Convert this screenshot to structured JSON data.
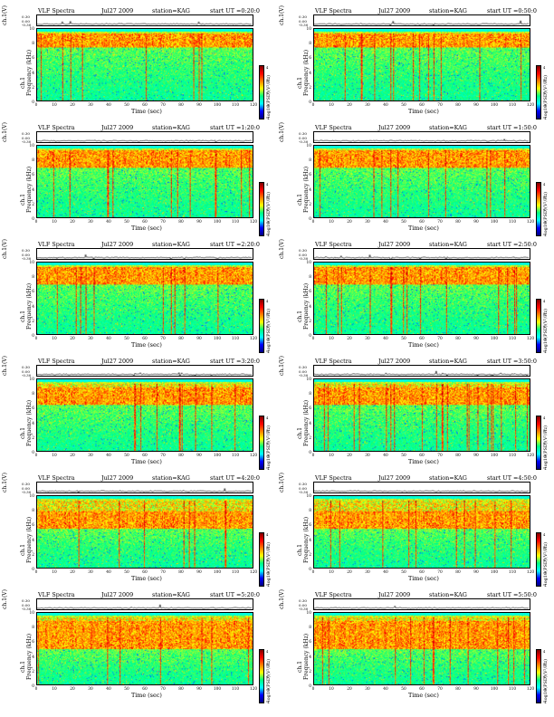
{
  "figure": {
    "title": "VLF Spectra",
    "date": "Jul27 2009",
    "station_label": "station=KAG",
    "ut_prefix": "start  UT =",
    "waveform_label": "ch.1(V)",
    "waveform_ticks": [
      "0.30",
      "0.00",
      "-0.30"
    ],
    "freq_label_top": "ch.1",
    "freq_label": "Frequency  (kHz)",
    "x_label": "Time  (sec)",
    "colorbar_label": "log10(PSD)(V²/Hz)",
    "colorbar_ticks": [
      "4",
      "2",
      "0",
      "-2",
      "-4"
    ],
    "colormap": [
      "#000080",
      "#0000ff",
      "#00ffff",
      "#00ff7f",
      "#ffff00",
      "#ff8000",
      "#ff0000",
      "#800000"
    ]
  },
  "chart_data": [
    {
      "type": "heatmap",
      "title": "VLF Spectra",
      "start_ut": "0:20:0",
      "xlabel": "Time  (sec)",
      "ylabel": "Frequency  (kHz)",
      "xlim": [
        0,
        120
      ],
      "ylim": [
        0,
        10
      ],
      "xticks": [
        0,
        10,
        20,
        30,
        40,
        50,
        60,
        70,
        80,
        90,
        100,
        110,
        120
      ],
      "yticks": [
        0,
        2,
        4,
        6,
        8,
        10
      ],
      "colorbar": "log10(PSD)(V²/Hz)",
      "band_top_khz": 9.5,
      "dense_band_khz": [
        7.5,
        9.5
      ]
    },
    {
      "type": "heatmap",
      "title": "VLF Spectra",
      "start_ut": "0:50:0",
      "xlabel": "Time  (sec)",
      "ylabel": "Frequency  (kHz)",
      "xlim": [
        0,
        120
      ],
      "ylim": [
        0,
        10
      ],
      "xticks": [
        0,
        10,
        20,
        30,
        40,
        50,
        60,
        70,
        80,
        90,
        100,
        110,
        120
      ],
      "yticks": [
        0,
        2,
        4,
        6,
        8,
        10
      ],
      "colorbar": "log10(PSD)(V²/Hz)",
      "band_top_khz": 9.5,
      "dense_band_khz": [
        7.5,
        9.5
      ]
    },
    {
      "type": "heatmap",
      "title": "VLF Spectra",
      "start_ut": "1:20:0",
      "xlabel": "Time  (sec)",
      "ylabel": "Frequency  (kHz)",
      "xlim": [
        0,
        120
      ],
      "ylim": [
        0,
        10
      ],
      "xticks": [
        0,
        10,
        20,
        30,
        40,
        50,
        60,
        70,
        80,
        90,
        100,
        110,
        120
      ],
      "yticks": [
        0,
        2,
        4,
        6,
        8,
        10
      ],
      "colorbar": "log10(PSD)(V²/Hz)",
      "band_top_khz": 9.5,
      "dense_band_khz": [
        7.0,
        9.5
      ]
    },
    {
      "type": "heatmap",
      "title": "VLF Spectra",
      "start_ut": "1:50:0",
      "xlabel": "Time  (sec)",
      "ylabel": "Frequency  (kHz)",
      "xlim": [
        0,
        120
      ],
      "ylim": [
        0,
        10
      ],
      "xticks": [
        0,
        10,
        20,
        30,
        40,
        50,
        60,
        70,
        80,
        90,
        100,
        110,
        120
      ],
      "yticks": [
        0,
        2,
        4,
        6,
        8,
        10
      ],
      "colorbar": "log10(PSD)(V²/Hz)",
      "band_top_khz": 9.5,
      "dense_band_khz": [
        7.0,
        9.5
      ]
    },
    {
      "type": "heatmap",
      "title": "VLF Spectra",
      "start_ut": "2:20:0",
      "xlabel": "Time  (sec)",
      "ylabel": "Frequency  (kHz)",
      "xlim": [
        0,
        120
      ],
      "ylim": [
        0,
        10
      ],
      "xticks": [
        0,
        10,
        20,
        30,
        40,
        50,
        60,
        70,
        80,
        90,
        100,
        110,
        120
      ],
      "yticks": [
        0,
        2,
        4,
        6,
        8,
        10
      ],
      "colorbar": "log10(PSD)(V²/Hz)",
      "band_top_khz": 9.5,
      "dense_band_khz": [
        7.0,
        9.5
      ]
    },
    {
      "type": "heatmap",
      "title": "VLF Spectra",
      "start_ut": "2:50:0",
      "xlabel": "Time  (sec)",
      "ylabel": "Frequency  (kHz)",
      "xlim": [
        0,
        120
      ],
      "ylim": [
        0,
        10
      ],
      "xticks": [
        0,
        10,
        20,
        30,
        40,
        50,
        60,
        70,
        80,
        90,
        100,
        110,
        120
      ],
      "yticks": [
        0,
        2,
        4,
        6,
        8,
        10
      ],
      "colorbar": "log10(PSD)(V²/Hz)",
      "band_top_khz": 9.5,
      "dense_band_khz": [
        7.0,
        9.5
      ]
    },
    {
      "type": "heatmap",
      "title": "VLF Spectra",
      "start_ut": "3:20:0",
      "xlabel": "Time  (sec)",
      "ylabel": "Frequency  (kHz)",
      "xlim": [
        0,
        120
      ],
      "ylim": [
        0,
        10
      ],
      "xticks": [
        0,
        10,
        20,
        30,
        40,
        50,
        60,
        70,
        80,
        90,
        100,
        110,
        120
      ],
      "yticks": [
        0,
        2,
        4,
        6,
        8,
        10
      ],
      "colorbar": "log10(PSD)(V²/Hz)",
      "band_top_khz": 9.5,
      "dense_band_khz": [
        6.5,
        9.0
      ]
    },
    {
      "type": "heatmap",
      "title": "VLF Spectra",
      "start_ut": "3:50:0",
      "xlabel": "Time  (sec)",
      "ylabel": "Frequency  (kHz)",
      "xlim": [
        0,
        120
      ],
      "ylim": [
        0,
        10
      ],
      "xticks": [
        0,
        10,
        20,
        30,
        40,
        50,
        60,
        70,
        80,
        90,
        100,
        110,
        120
      ],
      "yticks": [
        0,
        2,
        4,
        6,
        8,
        10
      ],
      "colorbar": "log10(PSD)(V²/Hz)",
      "band_top_khz": 9.5,
      "dense_band_khz": [
        6.5,
        9.0
      ]
    },
    {
      "type": "heatmap",
      "title": "VLF Spectra",
      "start_ut": "4:20:0",
      "xlabel": "Time  (sec)",
      "ylabel": "Frequency  (kHz)",
      "xlim": [
        0,
        120
      ],
      "ylim": [
        0,
        10
      ],
      "xticks": [
        0,
        10,
        20,
        30,
        40,
        50,
        60,
        70,
        80,
        90,
        100,
        110,
        120
      ],
      "yticks": [
        0,
        2,
        4,
        6,
        8,
        10
      ],
      "colorbar": "log10(PSD)(V²/Hz)",
      "band_top_khz": 9.5,
      "dense_band_khz": [
        5.5,
        8.0
      ]
    },
    {
      "type": "heatmap",
      "title": "VLF Spectra",
      "start_ut": "4:50:0",
      "xlabel": "Time  (sec)",
      "ylabel": "Frequency  (kHz)",
      "xlim": [
        0,
        120
      ],
      "ylim": [
        0,
        10
      ],
      "xticks": [
        0,
        10,
        20,
        30,
        40,
        50,
        60,
        70,
        80,
        90,
        100,
        110,
        120
      ],
      "yticks": [
        0,
        2,
        4,
        6,
        8,
        10
      ],
      "colorbar": "log10(PSD)(V²/Hz)",
      "band_top_khz": 9.5,
      "dense_band_khz": [
        5.5,
        8.0
      ]
    },
    {
      "type": "heatmap",
      "title": "VLF Spectra",
      "start_ut": "5:20:0",
      "xlabel": "Time  (sec)",
      "ylabel": "Frequency  (kHz)",
      "xlim": [
        0,
        120
      ],
      "ylim": [
        0,
        10
      ],
      "xticks": [
        0,
        10,
        20,
        30,
        40,
        50,
        60,
        70,
        80,
        90,
        100,
        110,
        120
      ],
      "yticks": [
        0,
        2,
        4,
        6,
        8,
        10
      ],
      "colorbar": "log10(PSD)(V²/Hz)",
      "band_top_khz": 9.5,
      "dense_band_khz": [
        5.0,
        9.0
      ]
    },
    {
      "type": "heatmap",
      "title": "VLF Spectra",
      "start_ut": "5:50:0",
      "xlabel": "Time  (sec)",
      "ylabel": "Frequency  (kHz)",
      "xlim": [
        0,
        120
      ],
      "ylim": [
        0,
        10
      ],
      "xticks": [
        0,
        10,
        20,
        30,
        40,
        50,
        60,
        70,
        80,
        90,
        100,
        110,
        120
      ],
      "yticks": [
        0,
        2,
        4,
        6,
        8,
        10
      ],
      "colorbar": "log10(PSD)(V²/Hz)",
      "band_top_khz": 9.5,
      "dense_band_khz": [
        5.0,
        9.0
      ]
    }
  ]
}
